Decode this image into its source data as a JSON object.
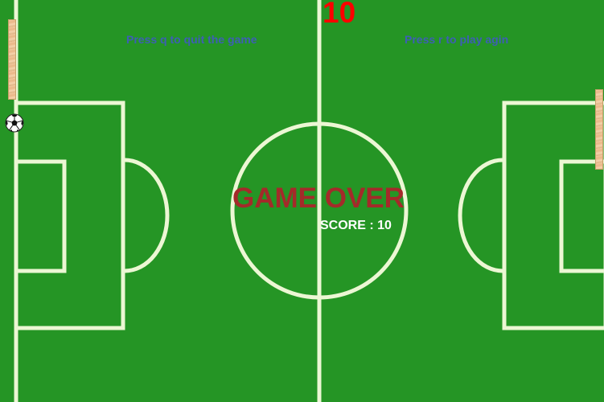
{
  "game": {
    "score": "10",
    "quit_hint": "Press q to quit the game",
    "replay_hint": "Press r to play agin",
    "game_over": "GAME OVER",
    "final_score": "SCORE : 10"
  },
  "colors": {
    "pitch": "#259525",
    "lines": "#ecf7d4",
    "score": "#ff0000",
    "hint_text": "#3d5fb4",
    "game_over": "#a42a2a"
  },
  "icons": {
    "ball": "soccer-ball-icon",
    "paddles": "wooden-paddle"
  }
}
